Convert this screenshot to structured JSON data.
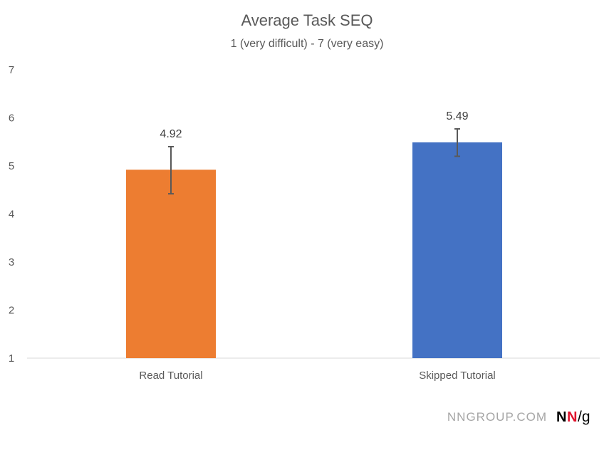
{
  "chart_data": {
    "type": "bar",
    "title": "Average Task SEQ",
    "subtitle": "1 (very difficult) - 7 (very easy)",
    "xlabel": "",
    "ylabel": "",
    "categories": [
      "Read Tutorial",
      "Skipped Tutorial"
    ],
    "values": [
      4.92,
      5.49
    ],
    "value_labels": [
      "4.92",
      "5.49"
    ],
    "error_low": [
      4.42,
      5.2
    ],
    "error_high": [
      5.4,
      5.77
    ],
    "colors": [
      "#ED7D31",
      "#4472C4"
    ],
    "ylim": [
      1,
      7
    ],
    "yticks": [
      "1",
      "2",
      "3",
      "4",
      "5",
      "6",
      "7"
    ],
    "grid": false,
    "legend": "none"
  },
  "footer": {
    "site": "NNGROUP.COM",
    "logo_nn_black": "N",
    "logo_nn_red": "N",
    "logo_g": "/g"
  }
}
